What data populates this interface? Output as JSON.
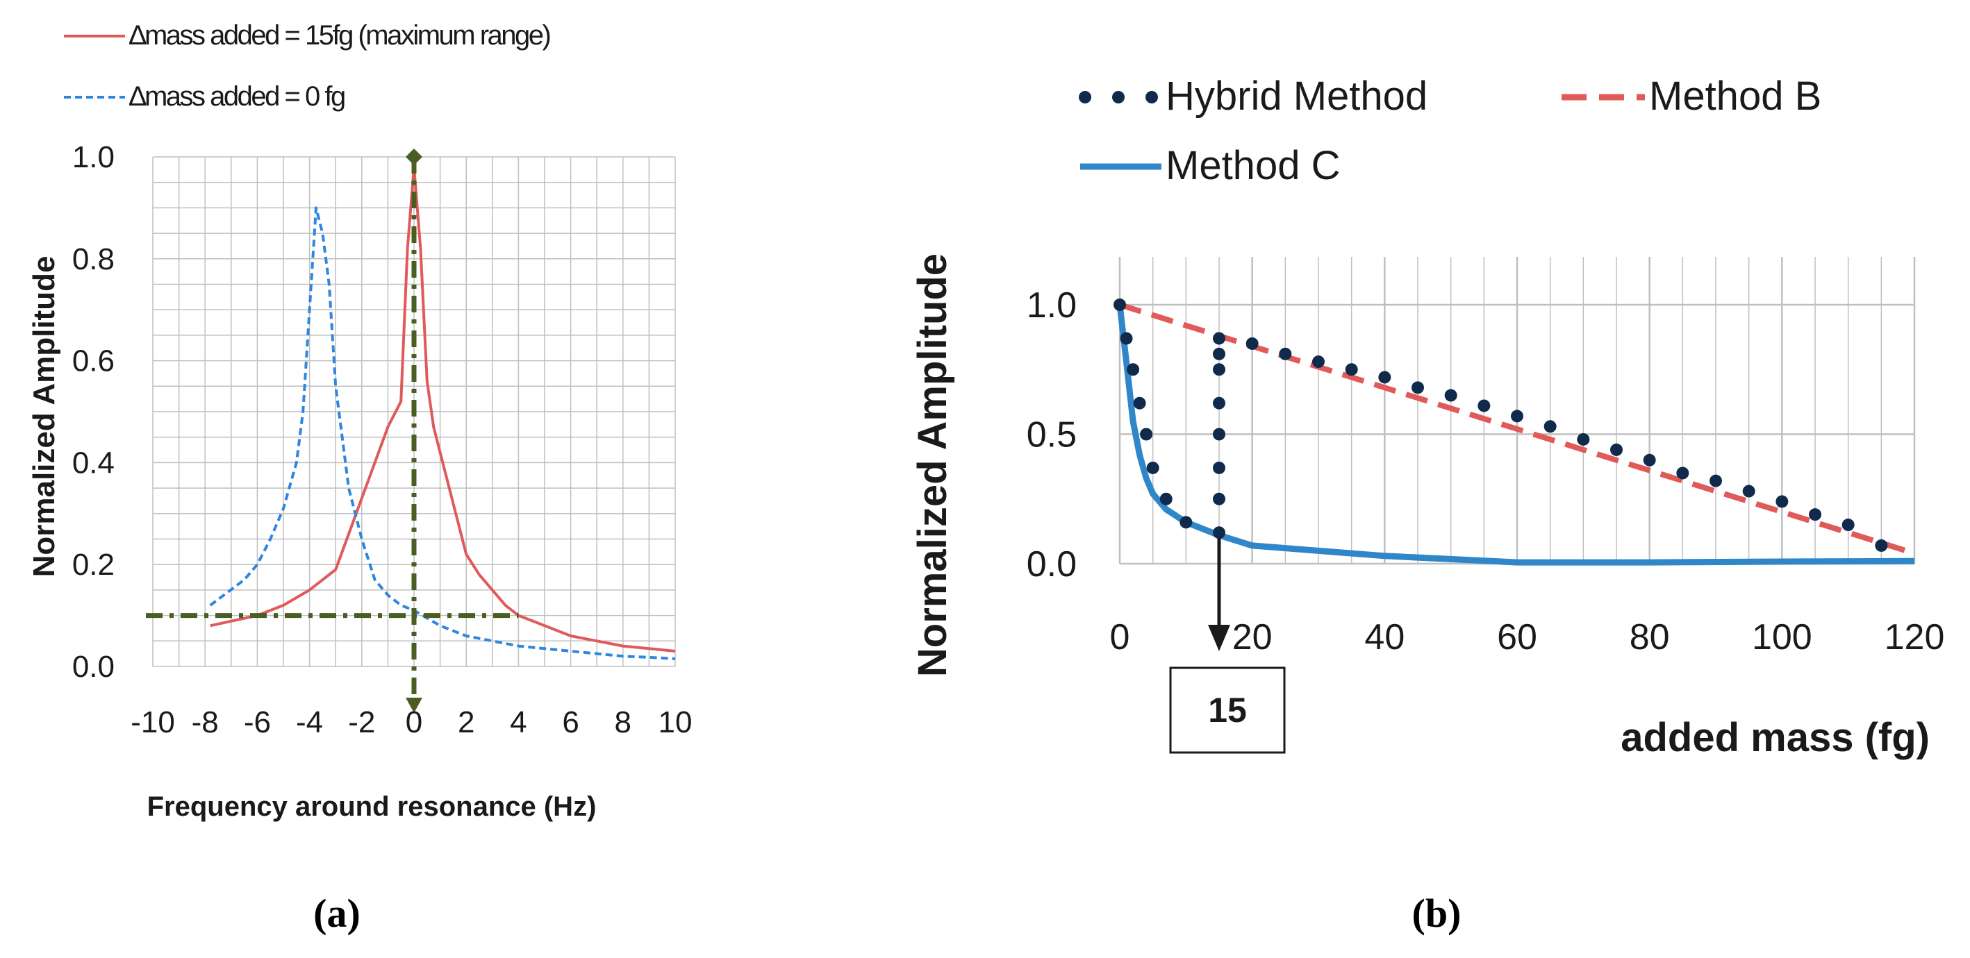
{
  "colors": {
    "red": "#e05a5a",
    "blue_dash": "#2e86de",
    "green_marker": "#4a5e23",
    "navy_dots": "#0f2a4a",
    "method_c": "#2f86c9",
    "grid": "#bfbfbf",
    "axis_text": "#1a1a1a"
  },
  "chart_data": [
    {
      "type": "line",
      "panel_label": "(a)",
      "xlabel": "Frequency around resonance (Hz)",
      "ylabel": "Normalized Amplitude",
      "xlim": [
        -10,
        10
      ],
      "ylim": [
        0,
        1
      ],
      "x_ticks": [
        -10,
        -8,
        -6,
        -4,
        -2,
        0,
        2,
        4,
        6,
        8,
        10
      ],
      "y_ticks": [
        0.0,
        0.2,
        0.4,
        0.6,
        0.8,
        1.0
      ],
      "x_tick_labels": [
        "-10",
        "-8",
        "-6",
        "-4",
        "-2",
        "0",
        "2",
        "4",
        "6",
        "8",
        "10"
      ],
      "y_tick_labels": [
        "0.0",
        "0.2",
        "0.4",
        "0.6",
        "0.8",
        "1.0"
      ],
      "grid": true,
      "legend_position": "top",
      "series": [
        {
          "name": "∆mass added = 15fg (maximum range)",
          "style": "solid",
          "color": "#e05a5a",
          "x": [
            -7.8,
            -6,
            -5,
            -4,
            -3.5,
            -3,
            -2.5,
            -2,
            -1.5,
            -1,
            -0.5,
            -0.25,
            0,
            0.25,
            0.5,
            0.75,
            1,
            1.5,
            2,
            2.5,
            3,
            3.5,
            4,
            5,
            6,
            7,
            8,
            9,
            10
          ],
          "y": [
            0.08,
            0.1,
            0.12,
            0.15,
            0.17,
            0.19,
            0.26,
            0.33,
            0.4,
            0.47,
            0.52,
            0.82,
            0.98,
            0.82,
            0.56,
            0.47,
            0.42,
            0.32,
            0.22,
            0.18,
            0.15,
            0.12,
            0.1,
            0.08,
            0.06,
            0.05,
            0.04,
            0.035,
            0.03
          ]
        },
        {
          "name": "∆mass added = 0 fg",
          "style": "dashed",
          "color": "#2e86de",
          "x": [
            -7.8,
            -6.5,
            -6,
            -5.5,
            -5,
            -4.5,
            -4.25,
            -4,
            -3.75,
            -3.5,
            -3.25,
            -3,
            -2.75,
            -2.5,
            -2,
            -1.5,
            -1,
            -0.5,
            0,
            1,
            2,
            3,
            4,
            5,
            6,
            7,
            8,
            9,
            10
          ],
          "y": [
            0.12,
            0.17,
            0.2,
            0.25,
            0.31,
            0.4,
            0.5,
            0.7,
            0.9,
            0.85,
            0.75,
            0.55,
            0.45,
            0.35,
            0.25,
            0.17,
            0.14,
            0.12,
            0.11,
            0.08,
            0.06,
            0.05,
            0.04,
            0.035,
            0.03,
            0.025,
            0.02,
            0.018,
            0.015
          ]
        }
      ],
      "reference_lines": [
        {
          "orientation": "horizontal",
          "value": 0.1,
          "style": "dash-dot",
          "color": "#4a5e23"
        },
        {
          "orientation": "vertical",
          "value": 0,
          "style": "dash-dot",
          "color": "#4a5e23"
        }
      ]
    },
    {
      "type": "line",
      "panel_label": "(b)",
      "xlabel": "added mass (fg)",
      "ylabel": "Normalized Amplitude",
      "xlim": [
        0,
        120
      ],
      "ylim": [
        0,
        1
      ],
      "x_ticks": [
        0,
        20,
        40,
        60,
        80,
        100,
        120
      ],
      "y_ticks": [
        0.0,
        0.5,
        1.0
      ],
      "x_tick_labels": [
        "0",
        "20",
        "40",
        "60",
        "80",
        "100",
        "120"
      ],
      "y_tick_labels": [
        "0.0",
        "0.5",
        "1.0"
      ],
      "grid": true,
      "legend_position": "top",
      "annotation": {
        "label": "15",
        "x": 15
      },
      "series": [
        {
          "name": "Hybrid Method",
          "style": "dotted",
          "color": "#0f2a4a",
          "x": [
            0,
            1,
            2,
            3,
            4,
            5,
            7,
            10,
            15,
            15,
            15,
            15,
            15,
            15,
            15,
            15,
            20,
            25,
            30,
            35,
            40,
            45,
            50,
            55,
            60,
            65,
            70,
            75,
            80,
            85,
            90,
            95,
            100,
            105,
            110,
            115
          ],
          "y": [
            1.0,
            0.87,
            0.75,
            0.62,
            0.5,
            0.37,
            0.25,
            0.16,
            0.12,
            0.25,
            0.37,
            0.5,
            0.62,
            0.75,
            0.81,
            0.87,
            0.85,
            0.81,
            0.78,
            0.75,
            0.72,
            0.68,
            0.65,
            0.61,
            0.57,
            0.53,
            0.48,
            0.44,
            0.4,
            0.35,
            0.32,
            0.28,
            0.24,
            0.19,
            0.15,
            0.07
          ]
        },
        {
          "name": "Method B",
          "style": "dashed",
          "color": "#e05a5a",
          "x": [
            0,
            120
          ],
          "y": [
            1.0,
            0.04
          ]
        },
        {
          "name": "Method C",
          "style": "solid",
          "color": "#2f86c9",
          "x": [
            0,
            1,
            2,
            3,
            4,
            5,
            7,
            10,
            15,
            20,
            30,
            40,
            60,
            80,
            100,
            120
          ],
          "y": [
            1.0,
            0.78,
            0.55,
            0.42,
            0.33,
            0.27,
            0.21,
            0.16,
            0.11,
            0.07,
            0.05,
            0.03,
            0.005,
            0.005,
            0.008,
            0.01
          ]
        }
      ]
    }
  ]
}
